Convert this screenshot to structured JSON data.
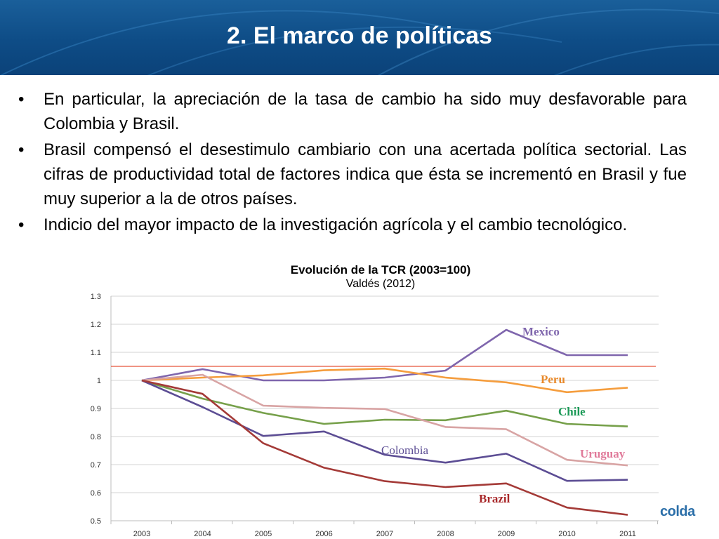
{
  "slide": {
    "title": "2. El marco de políticas",
    "bullets": [
      {
        "marker": "•",
        "text": "En particular, la apreciación de la tasa de cambio ha sido muy desfavorable para Colombia y Brasil."
      },
      {
        "marker": "•",
        "text": "Brasil compensó el desestimulo cambiario con una acertada política sectorial. Las cifras de productividad total de factores indica que ésta se incrementó en Brasil y fue muy superior a la de otros países."
      },
      {
        "marker": "•",
        "text": "Indicio del mayor impacto de la investigación agrícola y el cambio tecnológico."
      }
    ],
    "logo_text": "colda"
  },
  "chart_data": {
    "type": "line",
    "title": "Evolución de la TCR (2003=100)",
    "subtitle": "Valdés (2012)",
    "categories": [
      "2003",
      "2004",
      "2005",
      "2006",
      "2007",
      "2008",
      "2009",
      "2010",
      "2011"
    ],
    "ylim": [
      0.5,
      1.3
    ],
    "yticks": [
      "0.5",
      "0.6",
      "0.7",
      "0.8",
      "0.9",
      "1",
      "1.1",
      "1.2",
      "1.3"
    ],
    "grid": true,
    "reference_line": {
      "value": 1.05,
      "color": "#e8533a"
    },
    "series": [
      {
        "name": "Mexico",
        "color": "#7f66ad",
        "values": [
          1.0,
          1.04,
          1.0,
          1.0,
          1.01,
          1.035,
          1.18,
          1.09,
          1.09
        ]
      },
      {
        "name": "Peru",
        "color": "#f59d3d",
        "values": [
          1.0,
          1.01,
          1.018,
          1.036,
          1.042,
          1.01,
          0.993,
          0.958,
          0.974
        ]
      },
      {
        "name": "Chile",
        "color": "#76a04a",
        "values": [
          1.0,
          0.935,
          0.884,
          0.845,
          0.86,
          0.858,
          0.892,
          0.845,
          0.836
        ]
      },
      {
        "name": "Uruguay",
        "color": "#d8a4a4",
        "values": [
          1.0,
          1.02,
          0.91,
          0.902,
          0.898,
          0.834,
          0.826,
          0.717,
          0.697
        ]
      },
      {
        "name": "Colombia",
        "color": "#5c4d94",
        "values": [
          1.0,
          0.905,
          0.802,
          0.818,
          0.735,
          0.707,
          0.739,
          0.642,
          0.646
        ]
      },
      {
        "name": "Brazil",
        "color": "#a43a37",
        "values": [
          1.0,
          0.952,
          0.776,
          0.689,
          0.641,
          0.62,
          0.633,
          0.547,
          0.521
        ]
      }
    ],
    "series_label_colors": {
      "Mexico": "#7f66ad",
      "Peru": "#e8892a",
      "Chile": "#1d9a58",
      "Uruguay": "#e07a9a",
      "Colombia": "#5c4d94",
      "Brazil": "#a8282a"
    },
    "legend": "inline"
  }
}
